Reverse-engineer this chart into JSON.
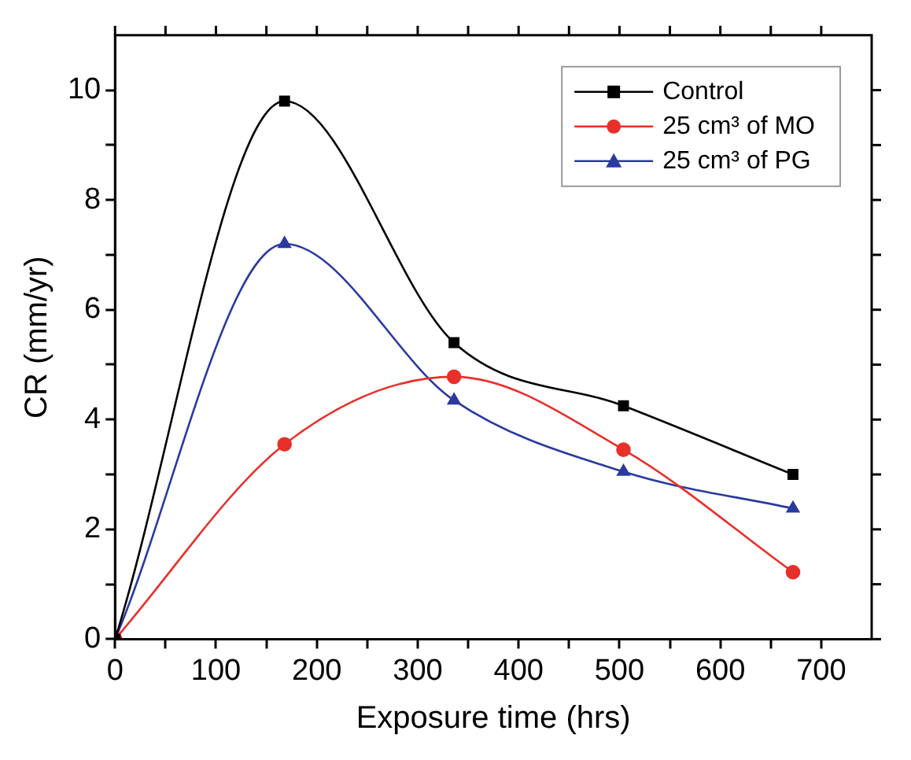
{
  "chart_data": {
    "type": "line",
    "xlabel": "Exposure time (hrs)",
    "ylabel": "CR (mm/yr)",
    "x": [
      0,
      168,
      336,
      504,
      672
    ],
    "series": [
      {
        "name": "Control",
        "color": "#000000",
        "marker": "square",
        "values": [
          0,
          9.8,
          5.4,
          4.25,
          3.0
        ]
      },
      {
        "name": "25 cm³ of MO",
        "color": "#e8302a",
        "marker": "circle",
        "values": [
          0,
          3.55,
          4.78,
          3.45,
          1.22
        ]
      },
      {
        "name": "25 cm³ of PG",
        "color": "#2a3aa0",
        "marker": "triangle",
        "values": [
          0,
          7.2,
          4.35,
          3.05,
          2.38
        ]
      }
    ],
    "xlim": [
      0,
      750
    ],
    "xticks": [
      0,
      {
        "value": 50,
        "label": null
      },
      100,
      {
        "value": 150,
        "label": null
      },
      200,
      {
        "value": 250,
        "label": null
      },
      300,
      {
        "value": 350,
        "label": null
      },
      400,
      {
        "value": 450,
        "label": null
      },
      500,
      {
        "value": 550,
        "label": null
      },
      600,
      {
        "value": 650,
        "label": null
      },
      700
    ],
    "ylim": [
      0,
      11
    ],
    "yticks": [
      0,
      {
        "value": 1,
        "label": null
      },
      2,
      {
        "value": 3,
        "label": null
      },
      4,
      {
        "value": 5,
        "label": null
      },
      6,
      {
        "value": 7,
        "label": null
      },
      8,
      {
        "value": 9,
        "label": null
      },
      10
    ],
    "grid": false,
    "legend": "top right"
  }
}
